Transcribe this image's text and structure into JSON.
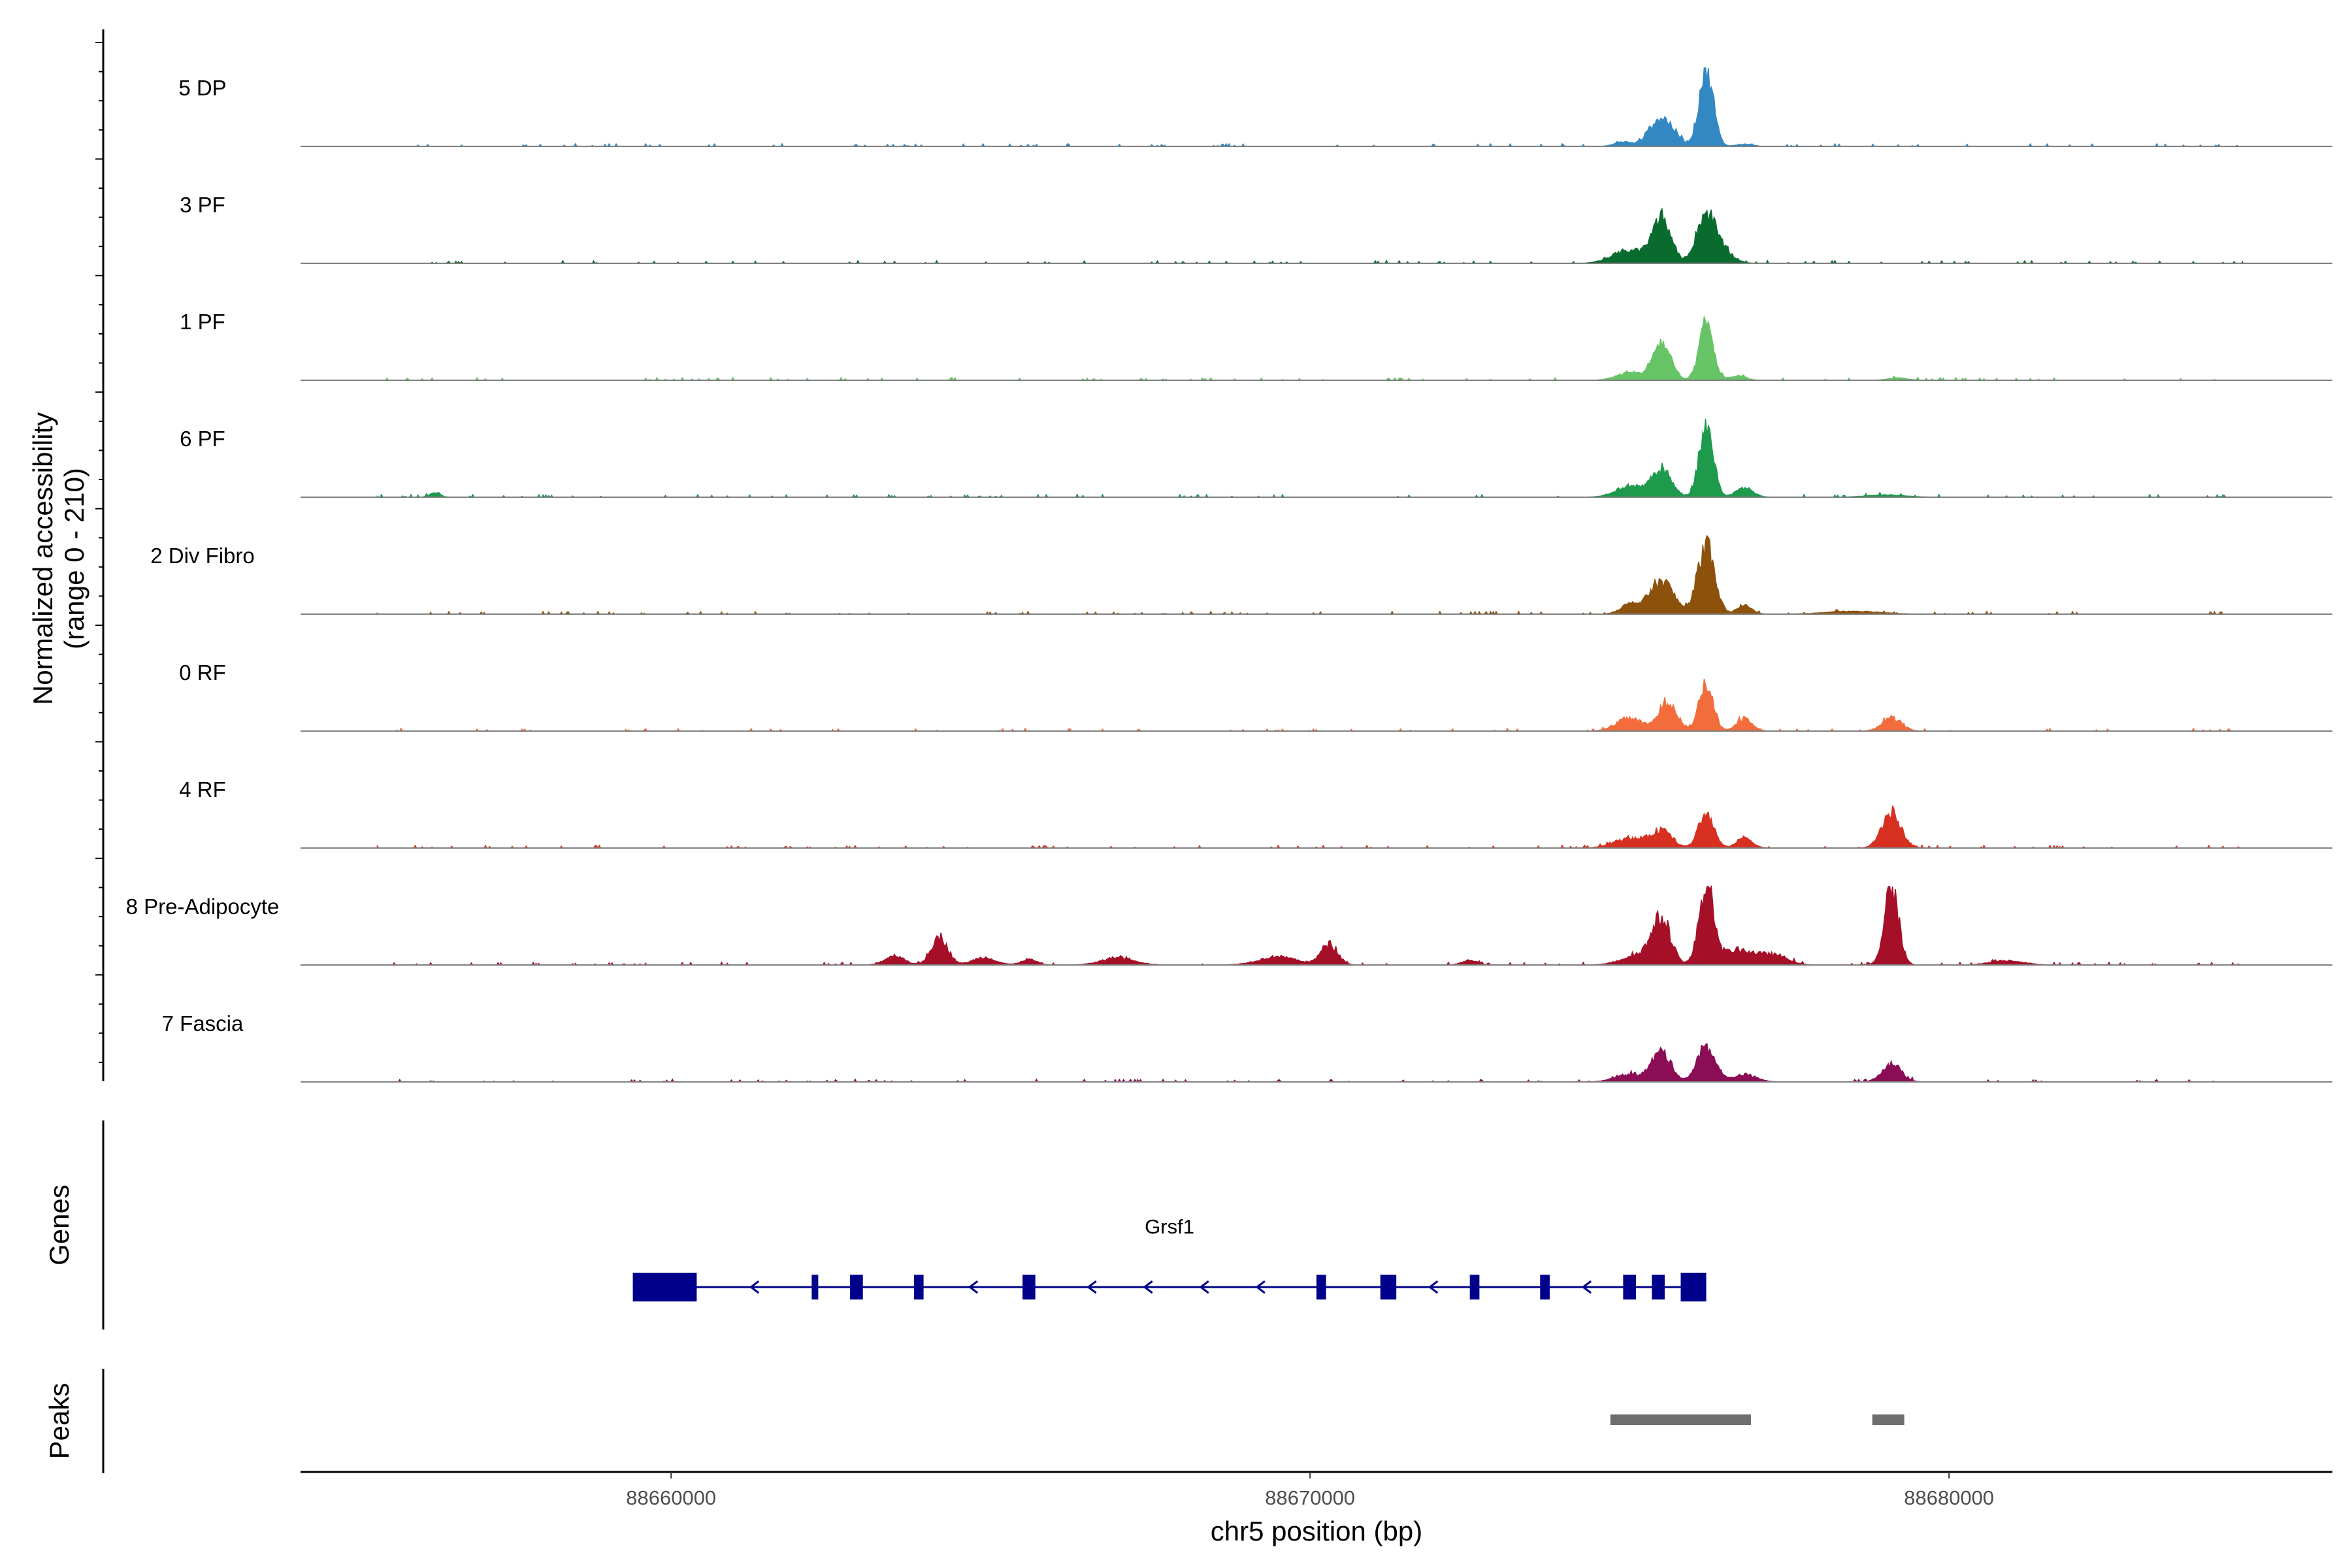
{
  "chart_data": {
    "type": "area",
    "title": "",
    "region": {
      "chrom": "chr5",
      "start": 88654200,
      "end": 88686000
    },
    "xlabel": "chr5 position (bp)",
    "x_ticks": [
      {
        "value": 88660000,
        "label": "88660000"
      },
      {
        "value": 88670000,
        "label": "88670000"
      },
      {
        "value": 88680000,
        "label": "88680000"
      }
    ],
    "ylabel_line1": "Normalized accessibility",
    "ylabel_line2": "(range 0 - 210)",
    "ylim": [
      0,
      210
    ],
    "tracks": [
      {
        "name": "5 DP",
        "color": "#3388c4",
        "peaks": [
          [
            88674900,
            12,
            130
          ],
          [
            88675400,
            45,
            150
          ],
          [
            88675600,
            48,
            160
          ],
          [
            88676200,
            210,
            110
          ],
          [
            88676800,
            6,
            120
          ]
        ]
      },
      {
        "name": "3 PF",
        "color": "#0a6b2f",
        "peaks": [
          [
            88675000,
            35,
            260
          ],
          [
            88675500,
            120,
            140
          ],
          [
            88676200,
            132,
            150
          ],
          [
            88676500,
            25,
            150
          ]
        ]
      },
      {
        "name": "1 PF",
        "color": "#66c466",
        "peaks": [
          [
            88675000,
            20,
            200
          ],
          [
            88675500,
            100,
            140
          ],
          [
            88676200,
            150,
            110
          ],
          [
            88676700,
            12,
            120
          ],
          [
            88679200,
            6,
            150
          ]
        ]
      },
      {
        "name": "6 PF",
        "color": "#1e9a4d",
        "peaks": [
          [
            88656300,
            12,
            80
          ],
          [
            88675000,
            30,
            220
          ],
          [
            88675500,
            75,
            150
          ],
          [
            88676200,
            195,
            110
          ],
          [
            88676800,
            25,
            130
          ],
          [
            88679000,
            6,
            300
          ]
        ]
      },
      {
        "name": "2 Div Fibro",
        "color": "#8c510a",
        "peaks": [
          [
            88675000,
            25,
            150
          ],
          [
            88675500,
            88,
            190
          ],
          [
            88676200,
            190,
            130
          ],
          [
            88676800,
            25,
            110
          ],
          [
            88678500,
            8,
            400
          ]
        ]
      },
      {
        "name": "0 RF",
        "color": "#f26c3c",
        "peaks": [
          [
            88675000,
            35,
            200
          ],
          [
            88675600,
            80,
            140
          ],
          [
            88676200,
            125,
            110
          ],
          [
            88676800,
            35,
            120
          ],
          [
            88679100,
            35,
            150
          ]
        ]
      },
      {
        "name": "4 RF",
        "color": "#d73020",
        "peaks": [
          [
            88675000,
            25,
            250
          ],
          [
            88675500,
            45,
            160
          ],
          [
            88676200,
            90,
            120
          ],
          [
            88676800,
            28,
            120
          ],
          [
            88679100,
            90,
            150
          ]
        ]
      },
      {
        "name": "8 Pre-Adipocyte",
        "color": "#a50f28",
        "peaks": [
          [
            88663500,
            25,
            150
          ],
          [
            88664200,
            75,
            130
          ],
          [
            88664900,
            20,
            180
          ],
          [
            88665600,
            15,
            120
          ],
          [
            88667000,
            20,
            250
          ],
          [
            88669500,
            22,
            300
          ],
          [
            88670300,
            55,
            130
          ],
          [
            88672500,
            12,
            120
          ],
          [
            88675200,
            30,
            280
          ],
          [
            88675500,
            110,
            140
          ],
          [
            88676200,
            210,
            110
          ],
          [
            88676700,
            40,
            300
          ],
          [
            88677300,
            22,
            200
          ],
          [
            88679100,
            210,
            110
          ],
          [
            88680900,
            12,
            250
          ]
        ]
      },
      {
        "name": "7 Fascia",
        "color": "#8b0d55",
        "peaks": [
          [
            88675000,
            20,
            220
          ],
          [
            88675500,
            80,
            150
          ],
          [
            88676200,
            95,
            140
          ],
          [
            88676800,
            20,
            180
          ],
          [
            88679100,
            48,
            150
          ]
        ]
      }
    ],
    "genes": [
      {
        "name": "Grsf1",
        "strand": "-",
        "start": 88659400,
        "end": 88676200,
        "exons": [
          [
            88659400,
            88660400
          ],
          [
            88662200,
            88662300
          ],
          [
            88662800,
            88663000
          ],
          [
            88663800,
            88663950
          ],
          [
            88665500,
            88665700
          ],
          [
            88670100,
            88670250
          ],
          [
            88671100,
            88671350
          ],
          [
            88672500,
            88672650
          ],
          [
            88673600,
            88673750
          ],
          [
            88674900,
            88675100
          ],
          [
            88675350,
            88675550
          ],
          [
            88675800,
            88676200
          ]
        ],
        "color": "#00008b"
      }
    ],
    "peaks_track": [
      {
        "start": 88674700,
        "end": 88676900
      },
      {
        "start": 88678800,
        "end": 88679300
      }
    ],
    "panel_labels": {
      "genes": "Genes",
      "peaks": "Peaks"
    },
    "colors": {
      "baseline": "#808080",
      "axis": "#000000",
      "peak_bar": "#6e6e6e"
    }
  }
}
